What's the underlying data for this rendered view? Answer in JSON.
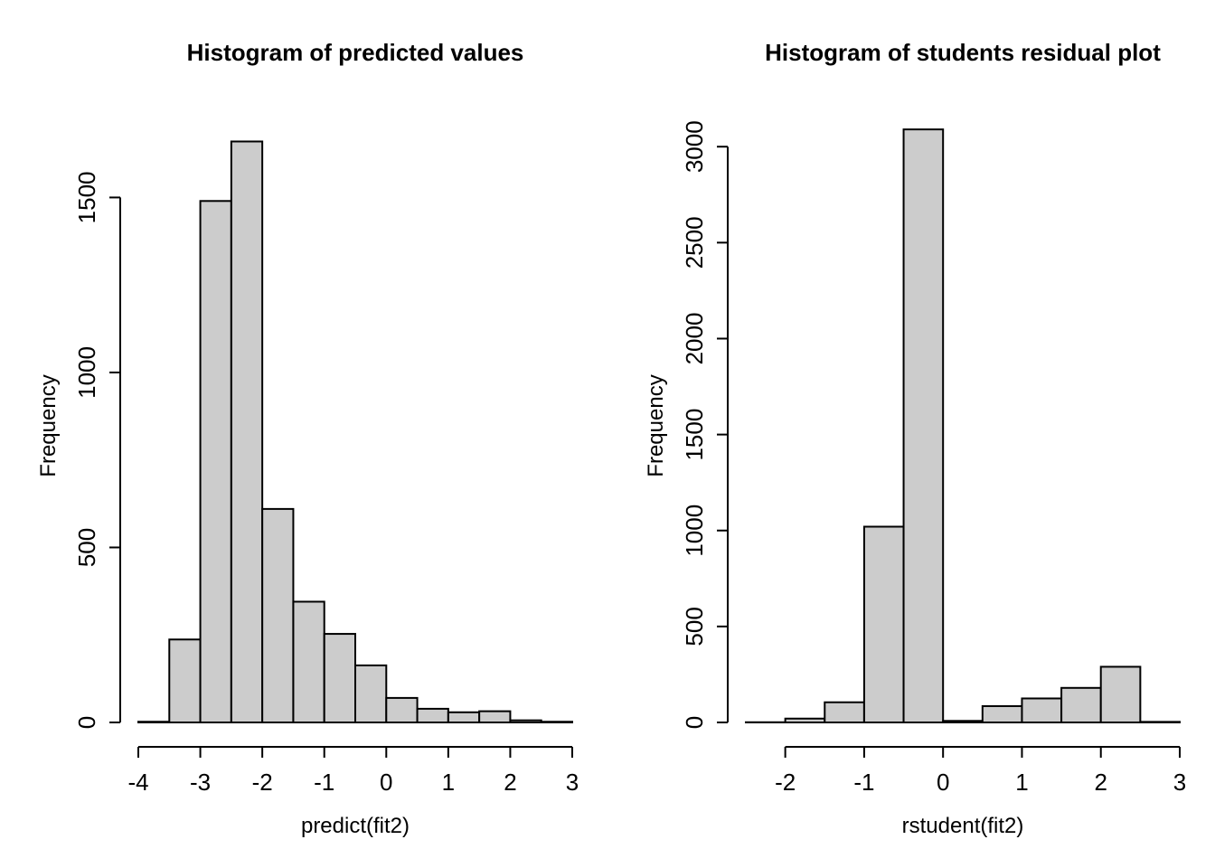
{
  "chart_data": [
    {
      "type": "bar",
      "subtype": "histogram",
      "title": "Histogram of predicted values",
      "xlabel": "predict(fit2)",
      "ylabel": "Frequency",
      "bin_edges": [
        -4,
        -3.5,
        -3,
        -2.5,
        -2,
        -1.5,
        -1,
        -0.5,
        0,
        0.5,
        1,
        1.5,
        2,
        2.5,
        3
      ],
      "values": [
        2,
        237,
        1490,
        1660,
        610,
        345,
        253,
        163,
        70,
        39,
        29,
        32,
        6,
        2
      ],
      "xlim": [
        -4,
        3
      ],
      "ylim": [
        0,
        1700
      ],
      "xticks": [
        -4,
        -3,
        -2,
        -1,
        0,
        1,
        2,
        3
      ],
      "xtick_labels": [
        "-4",
        "-3",
        "-2",
        "-1",
        "0",
        "1",
        "2",
        "3"
      ],
      "yticks": [
        0,
        500,
        1000,
        1500
      ],
      "ytick_labels": [
        "0",
        "500",
        "1000",
        "1500"
      ],
      "grid": false,
      "bar_color": "#cccccc"
    },
    {
      "type": "bar",
      "subtype": "histogram",
      "title": "Histogram of students residual plot",
      "xlabel": "rstudent(fit2)",
      "ylabel": "Frequency",
      "bin_edges": [
        -2.5,
        -2,
        -1.5,
        -1,
        -0.5,
        0,
        0.5,
        1,
        1.5,
        2,
        2.5,
        3
      ],
      "values": [
        1,
        20,
        105,
        1020,
        3090,
        8,
        85,
        125,
        180,
        290,
        3
      ],
      "xlim": [
        -2.5,
        3
      ],
      "ylim": [
        0,
        3100
      ],
      "xticks": [
        -2,
        -1,
        0,
        1,
        2,
        3
      ],
      "xtick_labels": [
        "-2",
        "-1",
        "0",
        "1",
        "2",
        "3"
      ],
      "yticks": [
        0,
        500,
        1000,
        1500,
        2000,
        2500,
        3000
      ],
      "ytick_labels": [
        "0",
        "500",
        "1000",
        "1500",
        "2000",
        "2500",
        "3000"
      ],
      "grid": false,
      "bar_color": "#cccccc"
    }
  ]
}
